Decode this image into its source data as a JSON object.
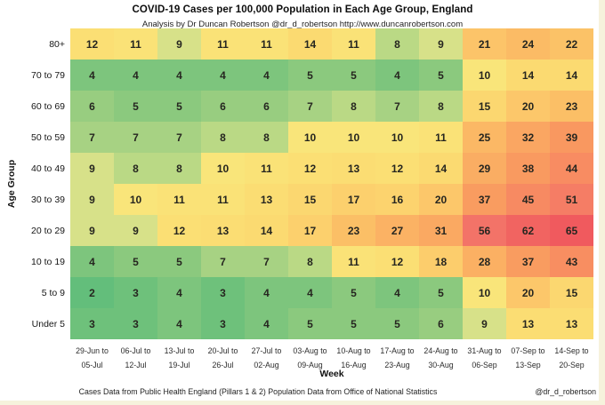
{
  "title": "COVID-19 Cases per 100,000 Population in Each Age Group, England",
  "subtitle": "Analysis by Dr Duncan Robertson @dr_d_robertson http://www.duncanrobertson.com",
  "footer": {
    "left": "Cases Data from Public Health England (Pillars 1 & 2) Population Data from Office of National Statistics",
    "right": "@dr_d_robertson"
  },
  "chart_data": {
    "type": "heatmap",
    "title": "COVID-19 Cases per 100,000 Population in Each Age Group, England",
    "xlabel": "Week",
    "ylabel": "Age Group",
    "legend": "none",
    "grid": "off",
    "rows": [
      "80+",
      "70 to 79",
      "60 to 69",
      "50 to 59",
      "40 to 49",
      "30 to 39",
      "20 to 29",
      "10 to 19",
      "5 to 9",
      "Under 5"
    ],
    "weeks": [
      {
        "top": "29-Jun to",
        "bottom": "05-Jul"
      },
      {
        "top": "06-Jul to",
        "bottom": "12-Jul"
      },
      {
        "top": "13-Jul to",
        "bottom": "19-Jul"
      },
      {
        "top": "20-Jul to",
        "bottom": "26-Jul"
      },
      {
        "top": "27-Jul to",
        "bottom": "02-Aug"
      },
      {
        "top": "03-Aug to",
        "bottom": "09-Aug"
      },
      {
        "top": "10-Aug to",
        "bottom": "16-Aug"
      },
      {
        "top": "17-Aug to",
        "bottom": "23-Aug"
      },
      {
        "top": "24-Aug to",
        "bottom": "30-Aug"
      },
      {
        "top": "31-Aug to",
        "bottom": "06-Sep"
      },
      {
        "top": "07-Sep to",
        "bottom": "13-Sep"
      },
      {
        "top": "14-Sep to",
        "bottom": "20-Sep"
      }
    ],
    "values": [
      [
        12,
        11,
        9,
        11,
        11,
        14,
        11,
        8,
        9,
        21,
        24,
        22
      ],
      [
        4,
        4,
        4,
        4,
        4,
        5,
        5,
        4,
        5,
        10,
        14,
        14
      ],
      [
        6,
        5,
        5,
        6,
        6,
        7,
        8,
        7,
        8,
        15,
        20,
        23
      ],
      [
        7,
        7,
        7,
        8,
        8,
        10,
        10,
        10,
        11,
        25,
        32,
        39
      ],
      [
        9,
        8,
        8,
        10,
        11,
        12,
        13,
        12,
        14,
        29,
        38,
        44
      ],
      [
        9,
        10,
        11,
        11,
        13,
        15,
        17,
        16,
        20,
        37,
        45,
        51
      ],
      [
        9,
        9,
        12,
        13,
        14,
        17,
        23,
        27,
        31,
        56,
        62,
        65
      ],
      [
        4,
        5,
        5,
        7,
        7,
        8,
        11,
        12,
        18,
        28,
        37,
        43
      ],
      [
        2,
        3,
        4,
        3,
        4,
        4,
        5,
        4,
        5,
        10,
        20,
        15
      ],
      [
        3,
        3,
        4,
        3,
        4,
        5,
        5,
        5,
        6,
        9,
        13,
        13
      ]
    ],
    "value_range": [
      2,
      65
    ],
    "color_scale": {
      "type": "green-yellow-red",
      "low_color": "#63be7b",
      "mid_color": "#f9e57a",
      "high_color": "#f05a5e",
      "stops": [
        [
          2,
          "#63be7b"
        ],
        [
          3,
          "#6ec17b"
        ],
        [
          4,
          "#7dc57d"
        ],
        [
          5,
          "#8bc97e"
        ],
        [
          6,
          "#98cd80"
        ],
        [
          7,
          "#a7d283"
        ],
        [
          8,
          "#bad985"
        ],
        [
          9,
          "#d7e189"
        ],
        [
          10,
          "#f9e57a"
        ],
        [
          12,
          "#fbdf74"
        ],
        [
          14,
          "#fbda71"
        ],
        [
          17,
          "#fcd06d"
        ],
        [
          20,
          "#fcc76a"
        ],
        [
          23,
          "#fbbf66"
        ],
        [
          26,
          "#fbb464"
        ],
        [
          30,
          "#faab62"
        ],
        [
          34,
          "#faa161"
        ],
        [
          38,
          "#f99a60"
        ],
        [
          43,
          "#f88e61"
        ],
        [
          47,
          "#f68563"
        ],
        [
          52,
          "#f57b66"
        ],
        [
          57,
          "#f37168"
        ],
        [
          62,
          "#f16461"
        ],
        [
          65,
          "#f05a5e"
        ]
      ]
    }
  }
}
